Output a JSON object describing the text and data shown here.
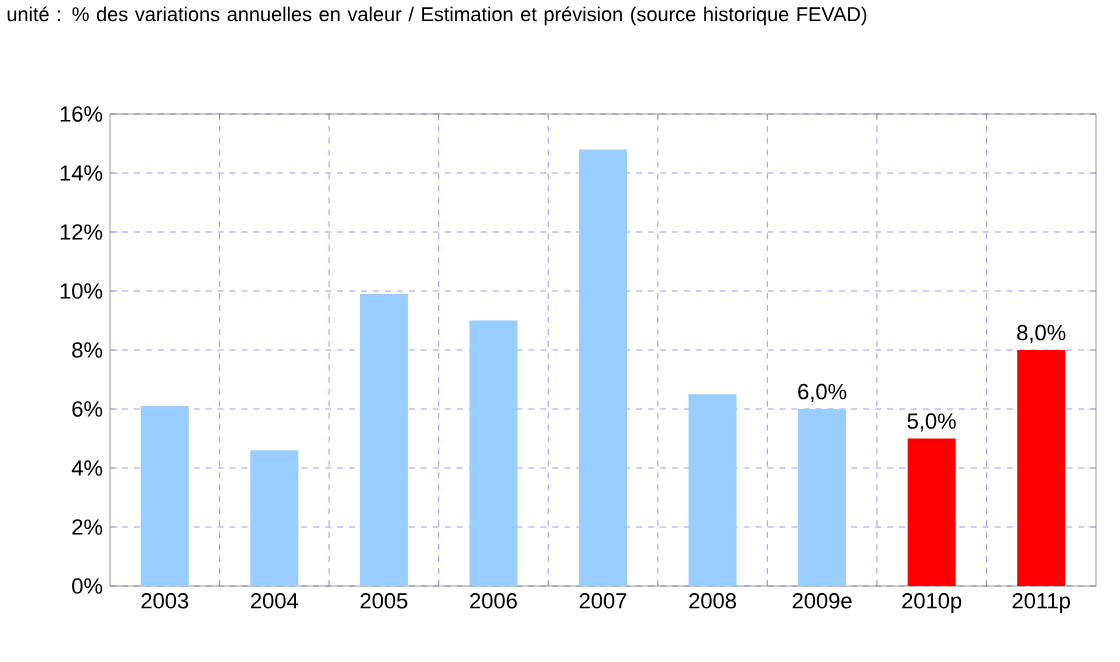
{
  "chart_data": {
    "type": "bar",
    "title": "unité : % des variations annuelles en valeur / Estimation et prévision (source historique FEVAD)",
    "categories": [
      "2003",
      "2004",
      "2005",
      "2006",
      "2007",
      "2008",
      "2009e",
      "2010p",
      "2011p"
    ],
    "values": [
      6.1,
      4.6,
      9.9,
      9.0,
      14.8,
      6.5,
      6.0,
      5.0,
      8.0
    ],
    "colors": [
      "#99ccff",
      "#99ccff",
      "#99ccff",
      "#99ccff",
      "#99ccff",
      "#99ccff",
      "#99ccff",
      "#ff0000",
      "#ff0000"
    ],
    "value_labels": [
      null,
      null,
      null,
      null,
      null,
      null,
      "6,0%",
      "5,0%",
      "8,0%"
    ],
    "ylim": [
      0,
      16
    ],
    "yticks": [
      {
        "value": 0,
        "label": "0%"
      },
      {
        "value": 2,
        "label": "2%"
      },
      {
        "value": 4,
        "label": "4%"
      },
      {
        "value": 6,
        "label": "6%"
      },
      {
        "value": 8,
        "label": "8%"
      },
      {
        "value": 10,
        "label": "10%"
      },
      {
        "value": 12,
        "label": "12%"
      },
      {
        "value": 14,
        "label": "14%"
      },
      {
        "value": 16,
        "label": "16%"
      }
    ],
    "grid": true
  }
}
